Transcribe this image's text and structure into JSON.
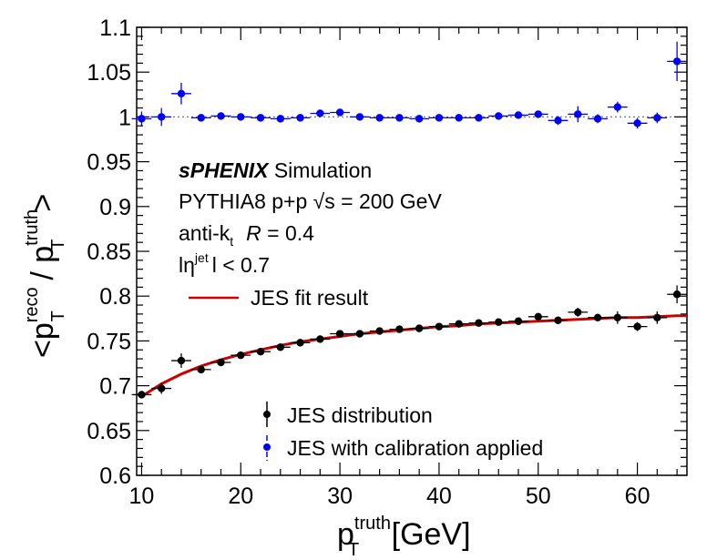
{
  "chart_data": {
    "type": "scatter",
    "xlabel_main": "p",
    "xlabel_sup": "truth",
    "xlabel_sub": "T",
    "xlabel_unit": "[GeV]",
    "ylabel_open": "<p",
    "ylabel_sup1": "reco",
    "ylabel_sub1": "T",
    "ylabel_slash": " / p",
    "ylabel_sup2": "truth",
    "ylabel_sub2": "T",
    "ylabel_close": ">",
    "xlim": [
      9.5,
      65
    ],
    "ylim": [
      0.6,
      1.1
    ],
    "x_ticks": [
      "10",
      "20",
      "30",
      "40",
      "50",
      "60"
    ],
    "y_ticks": [
      "0.6",
      "0.65",
      "0.7",
      "0.75",
      "0.8",
      "0.85",
      "0.9",
      "0.95",
      "1",
      "1.05",
      "1.1"
    ],
    "reference_line": 1.0,
    "info_text": {
      "experiment": "sPHENIX",
      "label": " Simulation",
      "line2_a": "PYTHIA8 p+p ",
      "line2_sqrt": "√",
      "line2_b": "s = 200 GeV",
      "line3_a": "anti-k",
      "line3_sub": "t",
      "line3_r": "R",
      "line3_b": " = 0.4",
      "line4_a": "l",
      "line4_eta": "η",
      "line4_sup": "jet",
      "line4_b": "l < 0.7"
    },
    "fit_label": "JES fit result",
    "series": [
      {
        "name": "JES distribution",
        "color": "#000000",
        "x": [
          10,
          12,
          14,
          16,
          18,
          20,
          22,
          24,
          26,
          28,
          30,
          32,
          34,
          36,
          38,
          40,
          42,
          44,
          46,
          48,
          50,
          52,
          54,
          56,
          58,
          60,
          62,
          64
        ],
        "y": [
          0.69,
          0.697,
          0.728,
          0.718,
          0.726,
          0.734,
          0.738,
          0.743,
          0.748,
          0.752,
          0.758,
          0.758,
          0.761,
          0.763,
          0.764,
          0.766,
          0.769,
          0.77,
          0.771,
          0.772,
          0.777,
          0.773,
          0.782,
          0.776,
          0.776,
          0.766,
          0.776,
          0.802
        ],
        "yerr": [
          0.004,
          0.006,
          0.008,
          0.003,
          0.003,
          0.003,
          0.003,
          0.003,
          0.003,
          0.003,
          0.003,
          0.003,
          0.003,
          0.003,
          0.003,
          0.003,
          0.003,
          0.003,
          0.003,
          0.003,
          0.003,
          0.004,
          0.005,
          0.004,
          0.007,
          0.005,
          0.007,
          0.01
        ]
      },
      {
        "name": "JES with calibration applied",
        "color": "#0000ff",
        "x": [
          10,
          12,
          14,
          16,
          18,
          20,
          22,
          24,
          26,
          28,
          30,
          32,
          34,
          36,
          38,
          40,
          42,
          44,
          46,
          48,
          50,
          52,
          54,
          56,
          58,
          60,
          62,
          64
        ],
        "y": [
          0.998,
          1.0,
          1.026,
          0.999,
          1.001,
          1.0,
          0.999,
          0.998,
          0.999,
          1.004,
          1.005,
          1.0,
          0.999,
          0.999,
          0.998,
          0.999,
          0.999,
          0.999,
          1.001,
          1.002,
          1.003,
          0.996,
          1.003,
          0.998,
          1.011,
          0.993,
          0.999,
          1.062
        ],
        "yerr": [
          0.008,
          0.01,
          0.012,
          0.004,
          0.004,
          0.004,
          0.004,
          0.004,
          0.004,
          0.004,
          0.004,
          0.004,
          0.004,
          0.004,
          0.004,
          0.004,
          0.004,
          0.004,
          0.004,
          0.004,
          0.004,
          0.005,
          0.009,
          0.005,
          0.006,
          0.006,
          0.006,
          0.022
        ]
      }
    ],
    "fit": {
      "name": "JES fit result",
      "color": "#cc0000",
      "x": [
        10,
        12,
        14,
        16,
        18,
        20,
        22,
        24,
        26,
        28,
        30,
        32,
        34,
        36,
        38,
        40,
        42,
        44,
        46,
        48,
        50,
        52,
        54,
        56,
        58,
        60,
        62,
        64,
        65
      ],
      "y": [
        0.688,
        0.702,
        0.713,
        0.722,
        0.729,
        0.735,
        0.74,
        0.745,
        0.749,
        0.752,
        0.755,
        0.758,
        0.76,
        0.762,
        0.764,
        0.766,
        0.767,
        0.769,
        0.77,
        0.771,
        0.772,
        0.773,
        0.774,
        0.775,
        0.776,
        0.776,
        0.777,
        0.778,
        0.778
      ]
    }
  }
}
